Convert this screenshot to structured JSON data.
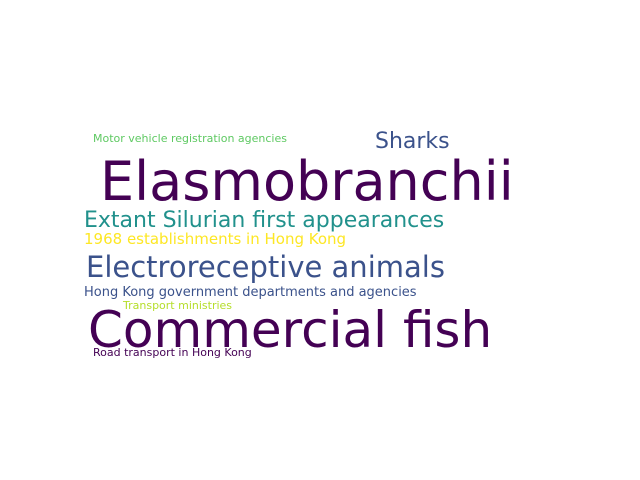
{
  "words": [
    {
      "text": "Motor vehicle registration agencies",
      "color": "#5ec962"
    },
    {
      "text": "Sharks",
      "color": "#3b528b"
    },
    {
      "text": "Elasmobranchii",
      "color": "#440154"
    },
    {
      "text": "Extant Silurian first appearances",
      "color": "#21918c"
    },
    {
      "text": "1968 establishments in Hong Kong",
      "color": "#fde725"
    },
    {
      "text": "Electroreceptive animals",
      "color": "#3b528b"
    },
    {
      "text": "Hong Kong government departments and agencies",
      "color": "#3b528b"
    },
    {
      "text": "Transport ministries",
      "color": "#b5de2b"
    },
    {
      "text": "Commercial fish",
      "color": "#440154"
    },
    {
      "text": "Road transport in Hong Kong",
      "color": "#440154"
    }
  ]
}
